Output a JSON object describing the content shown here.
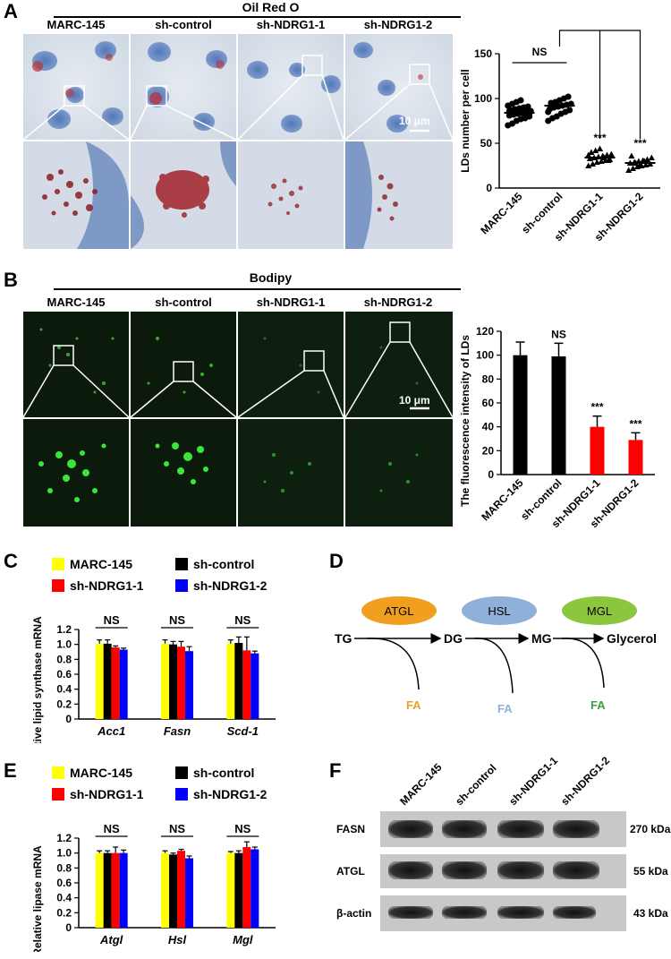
{
  "panels": {
    "A": {
      "label": "A",
      "stain": "Oil Red O",
      "groups": [
        "MARC-145",
        "sh-control",
        "sh-NDRG1-1",
        "sh-NDRG1-2"
      ],
      "scale_bar": "10 μm"
    },
    "B": {
      "label": "B",
      "stain": "Bodipy",
      "groups": [
        "MARC-145",
        "sh-control",
        "sh-NDRG1-1",
        "sh-NDRG1-2"
      ],
      "scale_bar": "10 μm"
    },
    "C": {
      "label": "C"
    },
    "D": {
      "label": "D",
      "enzymes": [
        "ATGL",
        "HSL",
        "MGL"
      ],
      "substrates": [
        "TG",
        "DG",
        "MG",
        "Glycerol"
      ],
      "byproduct": "FA",
      "colors": {
        "ATGL": "#f0a01e",
        "HSL": "#8fb0d8",
        "MGL": "#8cc63f"
      }
    },
    "E": {
      "label": "E"
    },
    "F": {
      "label": "F",
      "lanes": [
        "MARC-145",
        "sh-control",
        "sh-NDRG1-1",
        "sh-NDRG1-2"
      ],
      "rows": [
        {
          "name": "FASN",
          "size": "270 kDa"
        },
        {
          "name": "ATGL",
          "size": "55 kDa"
        },
        {
          "name": "β-actin",
          "size": "43 kDa"
        }
      ]
    }
  },
  "chart_data": [
    {
      "id": "A-scatter",
      "type": "scatter",
      "categories": [
        "MARC-145",
        "sh-control",
        "sh-NDRG1-1",
        "sh-NDRG1-2"
      ],
      "means": [
        84,
        92,
        34,
        28
      ],
      "points": [
        [
          70,
          72,
          75,
          77,
          78,
          80,
          81,
          82,
          83,
          84,
          85,
          86,
          87,
          88,
          89,
          90,
          91,
          92,
          94,
          96,
          98,
          80,
          83,
          86
        ],
        [
          75,
          78,
          80,
          83,
          85,
          87,
          88,
          90,
          91,
          92,
          93,
          94,
          95,
          96,
          98,
          100,
          102,
          85,
          90,
          96
        ],
        [
          25,
          27,
          29,
          30,
          31,
          32,
          33,
          34,
          35,
          36,
          37,
          38,
          40,
          42,
          44,
          34,
          31,
          37
        ],
        [
          20,
          22,
          24,
          25,
          26,
          27,
          28,
          29,
          30,
          31,
          32,
          34,
          36,
          28,
          26,
          30
        ]
      ],
      "ylabel": "LDs number per cell",
      "ylim": [
        0,
        150
      ],
      "yticks": [
        0,
        50,
        100,
        150
      ],
      "annotations": [
        "NS",
        "***",
        "***"
      ]
    },
    {
      "id": "B-bar",
      "type": "bar",
      "categories": [
        "MARC-145",
        "sh-control",
        "sh-NDRG1-1",
        "sh-NDRG1-2"
      ],
      "values": [
        100,
        99,
        40,
        29
      ],
      "errors": [
        11,
        11,
        9,
        6
      ],
      "colors": [
        "#000000",
        "#000000",
        "#ff0000",
        "#ff0000"
      ],
      "ylabel": "The fluorescence intensity of LDs",
      "ylim": [
        0,
        120
      ],
      "yticks": [
        0,
        20,
        40,
        60,
        80,
        100,
        120
      ],
      "annotations": [
        "NS",
        "***",
        "***"
      ]
    },
    {
      "id": "C-bar",
      "type": "bar",
      "categories": [
        "Acc1",
        "Fasn",
        "Scd-1"
      ],
      "series": [
        {
          "name": "MARC-145",
          "color": "#ffff00",
          "values": [
            1.01,
            1.01,
            1.01
          ],
          "errors": [
            0.05,
            0.05,
            0.05
          ]
        },
        {
          "name": "sh-control",
          "color": "#000000",
          "values": [
            1.01,
            1.0,
            1.02
          ],
          "errors": [
            0.05,
            0.04,
            0.08
          ]
        },
        {
          "name": "sh-NDRG1-1",
          "color": "#ff0000",
          "values": [
            0.96,
            0.97,
            0.92
          ],
          "errors": [
            0.02,
            0.07,
            0.18
          ]
        },
        {
          "name": "sh-NDRG1-2",
          "color": "#0000ff",
          "values": [
            0.93,
            0.91,
            0.88
          ],
          "errors": [
            0.02,
            0.06,
            0.03
          ]
        }
      ],
      "ylabel": "Relative lipid synthase mRNA",
      "ylim": [
        0,
        1.2
      ],
      "yticks": [
        0,
        0.2,
        0.4,
        0.6,
        0.8,
        1.0,
        1.2
      ],
      "ytick_labels": [
        "0",
        "0.2",
        "0.4",
        "0.6",
        "0.8",
        "1.0",
        "1.2"
      ],
      "annotations": [
        "NS",
        "NS",
        "NS"
      ]
    },
    {
      "id": "E-bar",
      "type": "bar",
      "categories": [
        "Atgl",
        "Hsl",
        "Mgl"
      ],
      "series": [
        {
          "name": "MARC-145",
          "color": "#ffff00",
          "values": [
            1.0,
            1.0,
            1.0
          ],
          "errors": [
            0.03,
            0.03,
            0.02
          ]
        },
        {
          "name": "sh-control",
          "color": "#000000",
          "values": [
            1.0,
            0.98,
            1.0
          ],
          "errors": [
            0.03,
            0.02,
            0.03
          ]
        },
        {
          "name": "sh-NDRG1-1",
          "color": "#ff0000",
          "values": [
            1.0,
            1.03,
            1.08
          ],
          "errors": [
            0.08,
            0.02,
            0.07
          ]
        },
        {
          "name": "sh-NDRG1-2",
          "color": "#0000ff",
          "values": [
            1.0,
            0.93,
            1.05
          ],
          "errors": [
            0.04,
            0.03,
            0.03
          ]
        }
      ],
      "ylabel": "Relative lipase mRNA",
      "ylim": [
        0,
        1.2
      ],
      "yticks": [
        0,
        0.2,
        0.4,
        0.6,
        0.8,
        1.0,
        1.2
      ],
      "ytick_labels": [
        "0",
        "0.2",
        "0.4",
        "0.6",
        "0.8",
        "1.0",
        "1.2"
      ],
      "annotations": [
        "NS",
        "NS",
        "NS"
      ]
    }
  ]
}
